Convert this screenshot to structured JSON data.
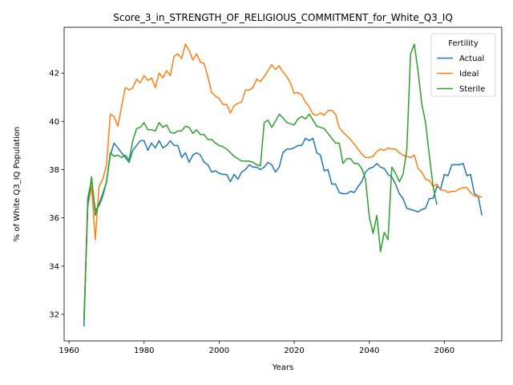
{
  "chart_data": {
    "type": "line",
    "title": "Score_3_in_STRENGTH_OF_RELIGIOUS_COMMITMENT_for_White_Q3_IQ",
    "xlabel": "Years",
    "ylabel": "% of White Q3_IQ Population",
    "xlim": [
      1958.7,
      2075.3
    ],
    "ylim": [
      30.9,
      43.9
    ],
    "xticks": [
      1960,
      1980,
      2000,
      2020,
      2040,
      2060
    ],
    "yticks": [
      32,
      34,
      36,
      38,
      40,
      42
    ],
    "grid": false,
    "legend": {
      "title": "Fertility",
      "position": "top-right"
    },
    "series": [
      {
        "name": "Actual",
        "color": "#1f77b4",
        "points": [
          [
            1964,
            31.5
          ],
          [
            1965,
            36.8
          ],
          [
            1966,
            37.6
          ],
          [
            1967,
            36.3
          ],
          [
            1968,
            36.5
          ],
          [
            1969,
            36.9
          ],
          [
            1970,
            37.5
          ],
          [
            1971,
            38.6
          ],
          [
            1972,
            39.1
          ],
          [
            1973,
            38.9
          ],
          [
            1974,
            38.7
          ],
          [
            1975,
            38.5
          ],
          [
            1976,
            38.3
          ],
          [
            1977,
            38.8
          ],
          [
            1978,
            39.0
          ],
          [
            1979,
            39.2
          ],
          [
            1980,
            39.2
          ],
          [
            1981,
            38.8
          ],
          [
            1982,
            39.1
          ],
          [
            1983,
            38.9
          ],
          [
            1984,
            39.2
          ],
          [
            1985,
            38.9
          ],
          [
            1986,
            39.0
          ],
          [
            1987,
            39.2
          ],
          [
            1988,
            39.0
          ],
          [
            1989,
            39.0
          ],
          [
            1990,
            38.5
          ],
          [
            1991,
            38.7
          ],
          [
            1992,
            38.3
          ],
          [
            1993,
            38.6
          ],
          [
            1994,
            38.7
          ],
          [
            1995,
            38.6
          ],
          [
            1996,
            38.3
          ],
          [
            1997,
            38.2
          ],
          [
            1998,
            37.9
          ],
          [
            1999,
            37.95
          ],
          [
            2000,
            37.85
          ],
          [
            2001,
            37.8
          ],
          [
            2002,
            37.8
          ],
          [
            2003,
            37.5
          ],
          [
            2004,
            37.8
          ],
          [
            2005,
            37.6
          ],
          [
            2006,
            37.9
          ],
          [
            2007,
            38.0
          ],
          [
            2008,
            38.2
          ],
          [
            2009,
            38.1
          ],
          [
            2010,
            38.1
          ],
          [
            2011,
            38.0
          ],
          [
            2012,
            38.1
          ],
          [
            2013,
            38.3
          ],
          [
            2014,
            38.2
          ],
          [
            2015,
            37.9
          ],
          [
            2016,
            38.1
          ],
          [
            2017,
            38.7
          ],
          [
            2018,
            38.85
          ],
          [
            2019,
            38.85
          ],
          [
            2020,
            38.9
          ],
          [
            2021,
            39.0
          ],
          [
            2022,
            39.0
          ],
          [
            2023,
            39.3
          ],
          [
            2024,
            39.2
          ],
          [
            2025,
            39.3
          ],
          [
            2026,
            38.7
          ],
          [
            2027,
            38.6
          ],
          [
            2028,
            37.95
          ],
          [
            2029,
            38.0
          ],
          [
            2030,
            37.4
          ],
          [
            2031,
            37.4
          ],
          [
            2032,
            37.05
          ],
          [
            2033,
            37.0
          ],
          [
            2034,
            37.0
          ],
          [
            2035,
            37.1
          ],
          [
            2036,
            37.05
          ],
          [
            2037,
            37.3
          ],
          [
            2038,
            37.5
          ],
          [
            2039,
            37.9
          ],
          [
            2040,
            38.05
          ],
          [
            2041,
            38.1
          ],
          [
            2042,
            38.25
          ],
          [
            2043,
            38.1
          ],
          [
            2044,
            38.05
          ],
          [
            2045,
            37.8
          ],
          [
            2046,
            37.7
          ],
          [
            2047,
            37.4
          ],
          [
            2048,
            37.0
          ],
          [
            2049,
            36.8
          ],
          [
            2050,
            36.4
          ],
          [
            2051,
            36.35
          ],
          [
            2052,
            36.3
          ],
          [
            2053,
            36.25
          ],
          [
            2054,
            36.35
          ],
          [
            2055,
            36.4
          ],
          [
            2056,
            36.8
          ],
          [
            2057,
            36.8
          ],
          [
            2058,
            37.3
          ],
          [
            2059,
            37.2
          ],
          [
            2060,
            37.8
          ],
          [
            2061,
            37.75
          ],
          [
            2062,
            38.2
          ],
          [
            2063,
            38.2
          ],
          [
            2064,
            38.2
          ],
          [
            2065,
            38.25
          ],
          [
            2066,
            37.75
          ],
          [
            2067,
            37.8
          ],
          [
            2068,
            37.0
          ],
          [
            2069,
            36.9
          ],
          [
            2070,
            36.1
          ]
        ]
      },
      {
        "name": "Ideal",
        "color": "#ff7f0e",
        "points": [
          [
            1964,
            31.9
          ],
          [
            1965,
            36.5
          ],
          [
            1966,
            37.3
          ],
          [
            1967,
            35.1
          ],
          [
            1968,
            37.3
          ],
          [
            1969,
            37.6
          ],
          [
            1970,
            38.2
          ],
          [
            1971,
            40.3
          ],
          [
            1972,
            40.2
          ],
          [
            1973,
            39.8
          ],
          [
            1974,
            40.6
          ],
          [
            1975,
            41.4
          ],
          [
            1976,
            41.3
          ],
          [
            1977,
            41.4
          ],
          [
            1978,
            41.75
          ],
          [
            1979,
            41.6
          ],
          [
            1980,
            41.9
          ],
          [
            1981,
            41.7
          ],
          [
            1982,
            41.8
          ],
          [
            1983,
            41.4
          ],
          [
            1984,
            42.0
          ],
          [
            1985,
            41.8
          ],
          [
            1986,
            42.1
          ],
          [
            1987,
            41.9
          ],
          [
            1988,
            42.7
          ],
          [
            1989,
            42.8
          ],
          [
            1990,
            42.6
          ],
          [
            1991,
            43.2
          ],
          [
            1992,
            42.95
          ],
          [
            1993,
            42.55
          ],
          [
            1994,
            42.8
          ],
          [
            1995,
            42.45
          ],
          [
            1996,
            42.4
          ],
          [
            1997,
            41.85
          ],
          [
            1998,
            41.2
          ],
          [
            1999,
            41.05
          ],
          [
            2000,
            40.95
          ],
          [
            2001,
            40.7
          ],
          [
            2002,
            40.7
          ],
          [
            2003,
            40.35
          ],
          [
            2004,
            40.65
          ],
          [
            2005,
            40.75
          ],
          [
            2006,
            40.8
          ],
          [
            2007,
            41.3
          ],
          [
            2008,
            41.3
          ],
          [
            2009,
            41.4
          ],
          [
            2010,
            41.75
          ],
          [
            2011,
            41.65
          ],
          [
            2012,
            41.85
          ],
          [
            2013,
            42.1
          ],
          [
            2014,
            42.35
          ],
          [
            2015,
            42.15
          ],
          [
            2016,
            42.3
          ],
          [
            2017,
            42.05
          ],
          [
            2018,
            41.85
          ],
          [
            2019,
            41.6
          ],
          [
            2020,
            41.15
          ],
          [
            2021,
            41.2
          ],
          [
            2022,
            41.1
          ],
          [
            2023,
            40.8
          ],
          [
            2024,
            40.6
          ],
          [
            2025,
            40.3
          ],
          [
            2026,
            40.25
          ],
          [
            2027,
            40.35
          ],
          [
            2028,
            40.25
          ],
          [
            2029,
            40.45
          ],
          [
            2030,
            40.45
          ],
          [
            2031,
            40.3
          ],
          [
            2032,
            39.75
          ],
          [
            2033,
            39.55
          ],
          [
            2034,
            39.4
          ],
          [
            2035,
            39.25
          ],
          [
            2036,
            39.05
          ],
          [
            2037,
            38.85
          ],
          [
            2038,
            38.65
          ],
          [
            2039,
            38.5
          ],
          [
            2040,
            38.5
          ],
          [
            2041,
            38.55
          ],
          [
            2042,
            38.75
          ],
          [
            2043,
            38.85
          ],
          [
            2044,
            38.8
          ],
          [
            2045,
            38.9
          ],
          [
            2046,
            38.85
          ],
          [
            2047,
            38.85
          ],
          [
            2048,
            38.7
          ],
          [
            2049,
            38.6
          ],
          [
            2050,
            38.55
          ],
          [
            2051,
            38.5
          ],
          [
            2052,
            38.6
          ],
          [
            2053,
            38.05
          ],
          [
            2054,
            37.9
          ],
          [
            2055,
            37.6
          ],
          [
            2056,
            37.55
          ],
          [
            2057,
            37.3
          ],
          [
            2058,
            37.4
          ],
          [
            2059,
            37.15
          ],
          [
            2060,
            37.15
          ],
          [
            2061,
            37.05
          ],
          [
            2062,
            37.1
          ],
          [
            2063,
            37.1
          ],
          [
            2064,
            37.2
          ],
          [
            2065,
            37.25
          ],
          [
            2066,
            37.25
          ],
          [
            2067,
            37.05
          ],
          [
            2068,
            36.9
          ],
          [
            2069,
            36.9
          ],
          [
            2070,
            36.85
          ]
        ]
      },
      {
        "name": "Sterile",
        "color": "#2ca02c",
        "points": [
          [
            1964,
            31.8
          ],
          [
            1965,
            36.5
          ],
          [
            1966,
            37.7
          ],
          [
            1967,
            36.1
          ],
          [
            1968,
            36.6
          ],
          [
            1969,
            37.0
          ],
          [
            1970,
            37.5
          ],
          [
            1971,
            38.7
          ],
          [
            1972,
            38.55
          ],
          [
            1973,
            38.6
          ],
          [
            1974,
            38.5
          ],
          [
            1975,
            38.6
          ],
          [
            1976,
            38.4
          ],
          [
            1977,
            39.2
          ],
          [
            1978,
            39.7
          ],
          [
            1979,
            39.75
          ],
          [
            1980,
            39.95
          ],
          [
            1981,
            39.65
          ],
          [
            1982,
            39.65
          ],
          [
            1983,
            39.6
          ],
          [
            1984,
            39.95
          ],
          [
            1985,
            39.75
          ],
          [
            1986,
            39.85
          ],
          [
            1987,
            39.55
          ],
          [
            1988,
            39.5
          ],
          [
            1989,
            39.6
          ],
          [
            1990,
            39.6
          ],
          [
            1991,
            39.8
          ],
          [
            1992,
            39.75
          ],
          [
            1993,
            39.5
          ],
          [
            1994,
            39.65
          ],
          [
            1995,
            39.45
          ],
          [
            1996,
            39.45
          ],
          [
            1997,
            39.25
          ],
          [
            1998,
            39.25
          ],
          [
            1999,
            39.1
          ],
          [
            2000,
            39.0
          ],
          [
            2001,
            38.95
          ],
          [
            2002,
            38.85
          ],
          [
            2003,
            38.7
          ],
          [
            2004,
            38.55
          ],
          [
            2005,
            38.45
          ],
          [
            2006,
            38.35
          ],
          [
            2007,
            38.35
          ],
          [
            2008,
            38.35
          ],
          [
            2009,
            38.3
          ],
          [
            2010,
            38.2
          ],
          [
            2011,
            38.15
          ],
          [
            2012,
            39.95
          ],
          [
            2013,
            40.05
          ],
          [
            2014,
            39.75
          ],
          [
            2015,
            40.0
          ],
          [
            2016,
            40.3
          ],
          [
            2017,
            40.15
          ],
          [
            2018,
            39.95
          ],
          [
            2019,
            39.9
          ],
          [
            2020,
            39.85
          ],
          [
            2021,
            40.1
          ],
          [
            2022,
            40.2
          ],
          [
            2023,
            40.1
          ],
          [
            2024,
            40.3
          ],
          [
            2025,
            40.05
          ],
          [
            2026,
            39.8
          ],
          [
            2027,
            39.75
          ],
          [
            2028,
            39.7
          ],
          [
            2029,
            39.5
          ],
          [
            2030,
            39.3
          ],
          [
            2031,
            39.1
          ],
          [
            2032,
            39.1
          ],
          [
            2033,
            38.25
          ],
          [
            2034,
            38.45
          ],
          [
            2035,
            38.45
          ],
          [
            2036,
            38.25
          ],
          [
            2037,
            38.25
          ],
          [
            2038,
            38.05
          ],
          [
            2039,
            37.6
          ],
          [
            2040,
            36.05
          ],
          [
            2041,
            35.35
          ],
          [
            2042,
            36.1
          ],
          [
            2043,
            34.6
          ],
          [
            2044,
            35.4
          ],
          [
            2045,
            35.1
          ],
          [
            2046,
            38.1
          ],
          [
            2047,
            37.85
          ],
          [
            2048,
            37.5
          ],
          [
            2049,
            37.8
          ],
          [
            2050,
            38.8
          ],
          [
            2051,
            42.8
          ],
          [
            2052,
            43.2
          ],
          [
            2053,
            42.05
          ],
          [
            2054,
            40.7
          ],
          [
            2055,
            39.95
          ],
          [
            2056,
            38.6
          ],
          [
            2057,
            37.3
          ],
          [
            2058,
            36.55
          ]
        ]
      }
    ]
  }
}
